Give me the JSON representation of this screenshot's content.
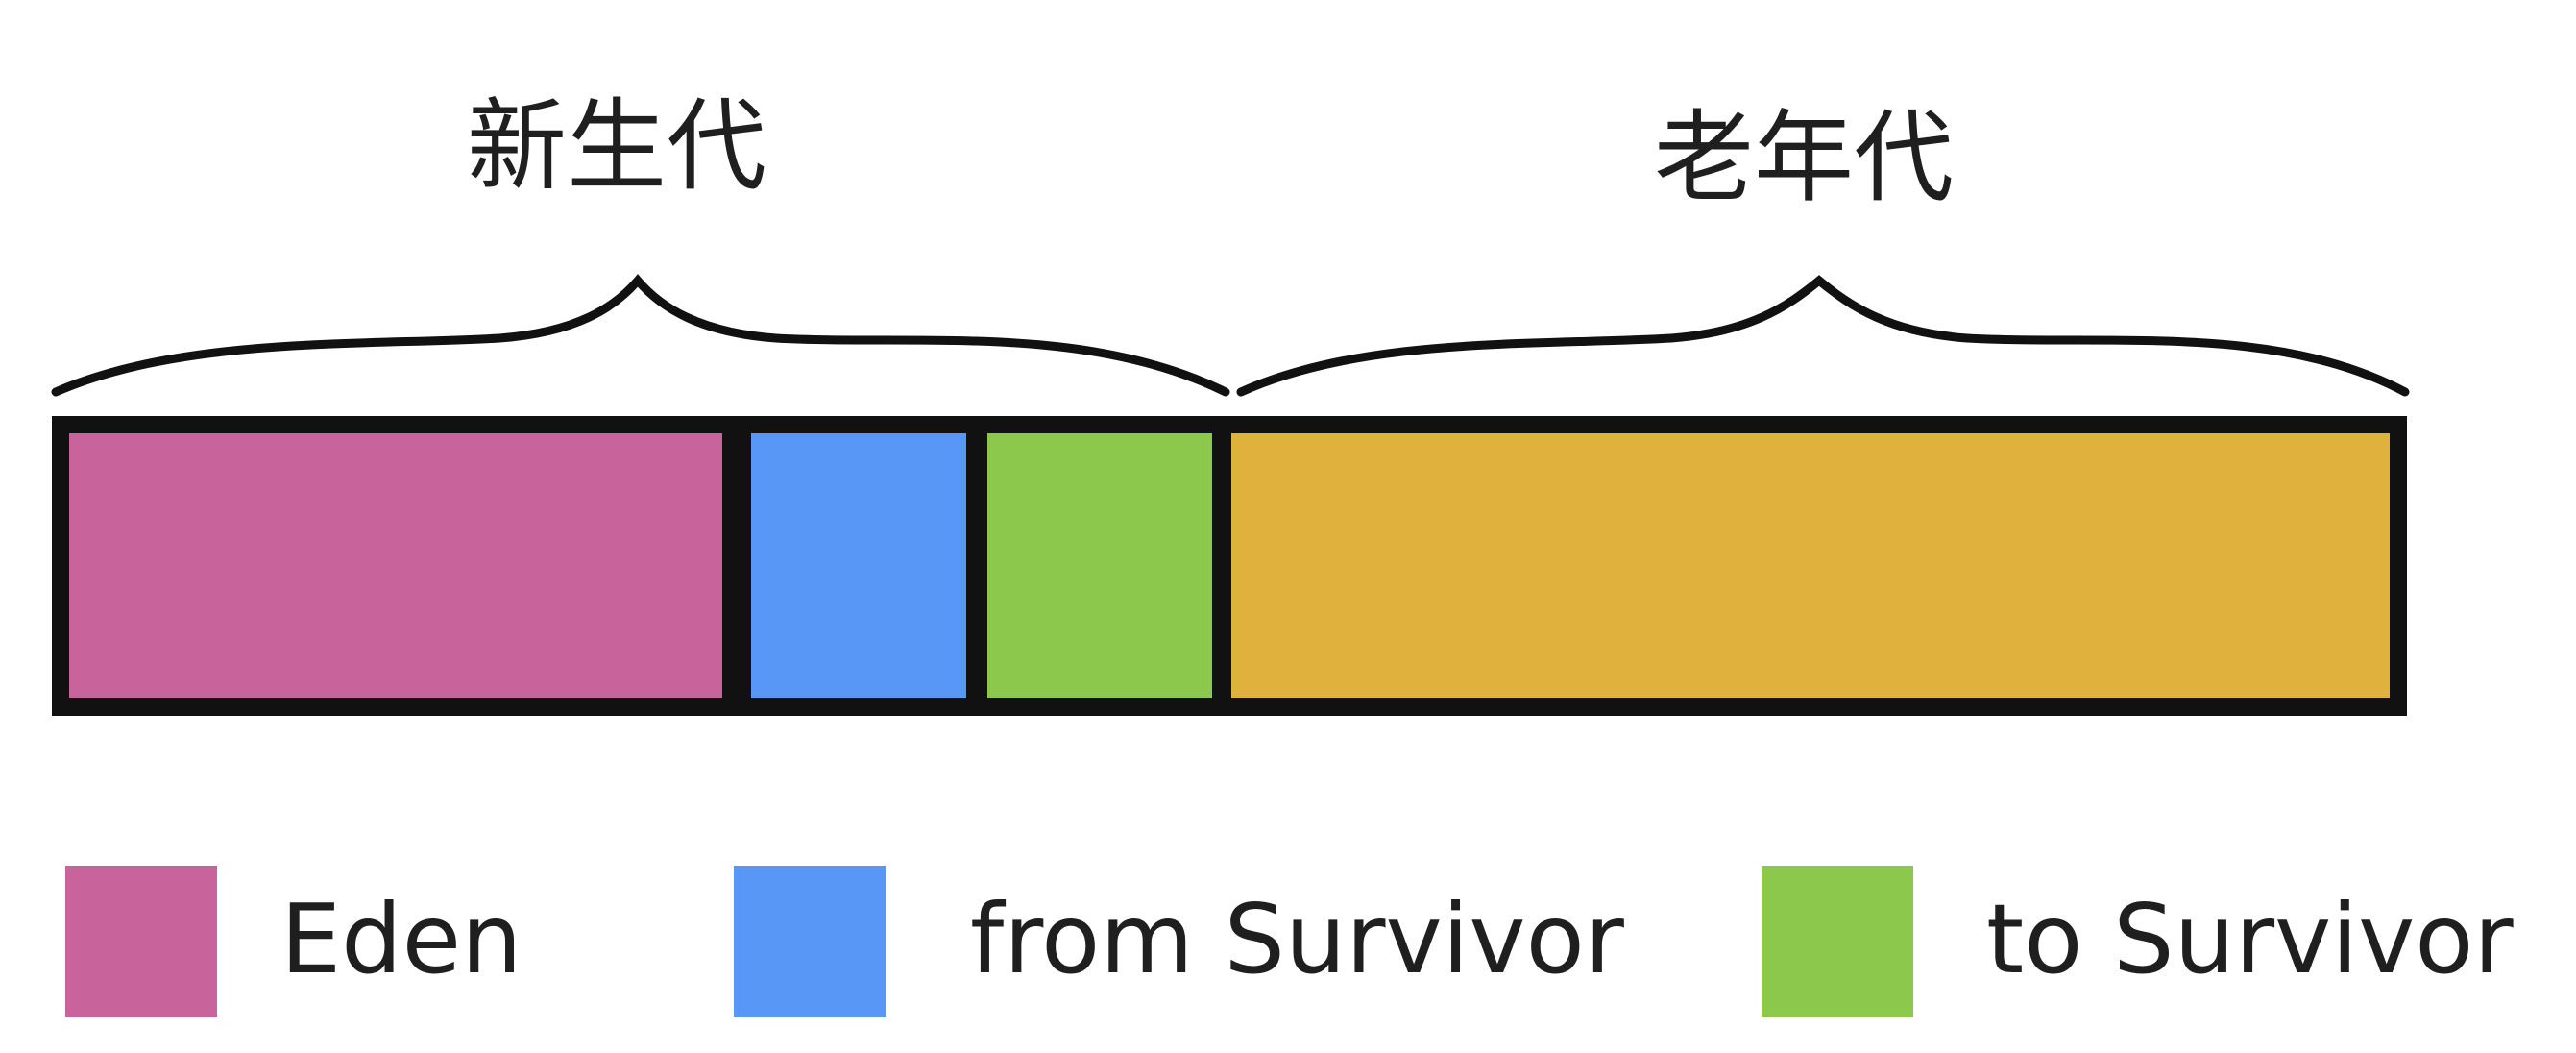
{
  "groups": {
    "young": {
      "label": "新生代"
    },
    "old": {
      "label": "老年代"
    }
  },
  "segments": [
    {
      "key": "eden",
      "color": "#c8639b"
    },
    {
      "key": "from",
      "color": "#5897f5"
    },
    {
      "key": "to",
      "color": "#8cc84b"
    },
    {
      "key": "old",
      "color": "#e0b23d"
    }
  ],
  "legend": [
    {
      "label": "Eden",
      "color": "#c8639b"
    },
    {
      "label": "from Survivor",
      "color": "#5897f5"
    },
    {
      "label": "to Survivor",
      "color": "#8cc84b"
    }
  ]
}
